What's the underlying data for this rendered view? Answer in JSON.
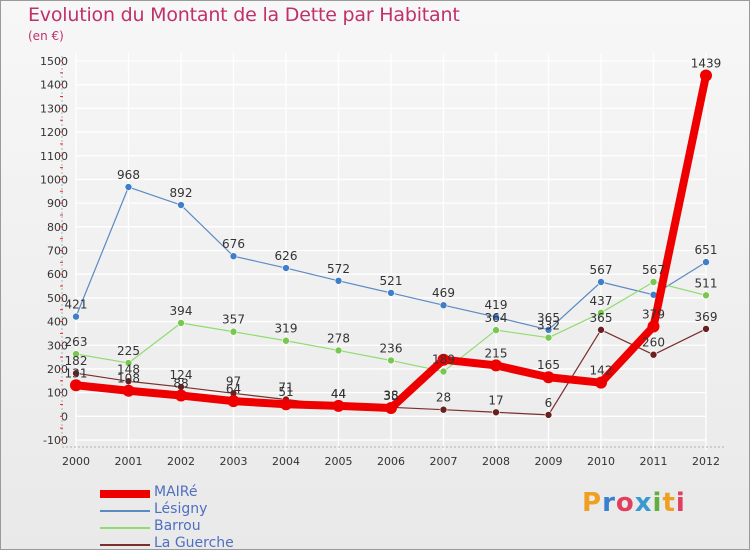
{
  "title": "Evolution du Montant de la Dette par Habitant",
  "unit": "(en €)",
  "logo": {
    "letters": [
      "P",
      "r",
      "o",
      "x",
      "i",
      "t",
      "i"
    ],
    "colors": [
      "#f0a020",
      "#3a7fd0",
      "#e04060",
      "#3a9ad0",
      "#60b040",
      "#f0a020",
      "#e04060"
    ]
  },
  "chart_data": {
    "type": "line",
    "x": [
      "2000",
      "2001",
      "2002",
      "2003",
      "2004",
      "2005",
      "2006",
      "2007",
      "2008",
      "2009",
      "2010",
      "2011",
      "2012"
    ],
    "ylim": [
      -100,
      1500
    ],
    "yticks": [
      -100,
      0,
      100,
      200,
      300,
      400,
      500,
      600,
      700,
      800,
      900,
      1000,
      1100,
      1200,
      1300,
      1400,
      1500
    ],
    "grid": true,
    "legend_position": "bottom-left",
    "series": [
      {
        "name": "Lésigny",
        "color": "#5b8ac0",
        "marker": "#3f7ec8",
        "width": 1.2,
        "values": [
          421,
          968,
          892,
          676,
          626,
          572,
          521,
          469,
          419,
          365,
          567,
          513,
          651
        ],
        "labels": [
          "421",
          "968",
          "892",
          "676",
          "626",
          "572",
          "521",
          "469",
          "419",
          "365",
          "567",
          "",
          "651"
        ]
      },
      {
        "name": "Barrou",
        "color": "#90dc70",
        "marker": "#78c850",
        "width": 1.2,
        "values": [
          263,
          225,
          394,
          357,
          319,
          278,
          236,
          189,
          364,
          332,
          437,
          567,
          511
        ],
        "labels": [
          "263",
          "225",
          "394",
          "357",
          "319",
          "278",
          "236",
          "189",
          "364",
          "332",
          "437",
          "567",
          "511"
        ]
      },
      {
        "name": "La Guerche",
        "color": "#7a2e2e",
        "marker": "#6a2020",
        "width": 1.2,
        "values": [
          182,
          148,
          124,
          97,
          71,
          44,
          38,
          28,
          17,
          6,
          365,
          260,
          369
        ],
        "labels": [
          "182",
          "148",
          "124",
          "97",
          "71",
          "44",
          "38",
          "28",
          "17",
          "6",
          "365",
          "260",
          "369"
        ]
      },
      {
        "name": "MAIRé",
        "color": "#ee0000",
        "marker": "#ee0000",
        "width": 8,
        "values": [
          131,
          108,
          88,
          64,
          51,
          44,
          35,
          239,
          215,
          165,
          142,
          379,
          1439
        ],
        "labels": [
          "131",
          "108",
          "88",
          "64",
          "51",
          "44",
          "35",
          "",
          "215",
          "165",
          "142",
          "379",
          "1439"
        ]
      }
    ]
  }
}
